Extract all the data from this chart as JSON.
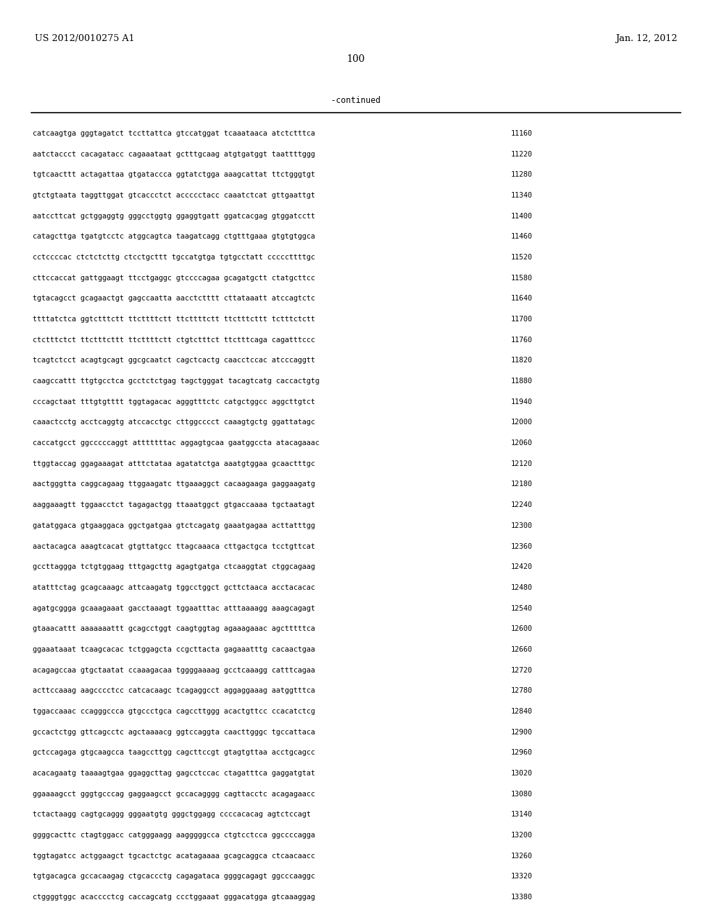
{
  "header_left": "US 2012/0010275 A1",
  "header_right": "Jan. 12, 2012",
  "page_number": "100",
  "continued_label": "-continued",
  "background_color": "#ffffff",
  "text_color": "#000000",
  "font_size": 7.5,
  "header_font_size": 9.5,
  "page_num_font_size": 10,
  "sequences": [
    [
      "catcaagtga gggtagatct tccttattca gtccatggat tcaaataaca atctctttca",
      "11160"
    ],
    [
      "aatctaccct cacagatacc cagaaataat gctttgcaag atgtgatggt taattttggg",
      "11220"
    ],
    [
      "tgtcaacttt actagattaa gtgataccca ggtatctgga aaagcattat ttctgggtgt",
      "11280"
    ],
    [
      "gtctgtaata taggttggat gtcaccctct accccctacc caaatctcat gttgaattgt",
      "11340"
    ],
    [
      "aatccttcat gctggaggtg gggcctggtg ggaggtgatt ggatcacgag gtggatcctt",
      "11400"
    ],
    [
      "catagcttga tgatgtcctc atggcagtca taagatcagg ctgtttgaaa gtgtgtggca",
      "11460"
    ],
    [
      "cctccccac ctctctcttg ctcctgcttt tgccatgtga tgtgcctatt cccccttttgc",
      "11520"
    ],
    [
      "cttccaccat gattggaagt ttcctgaggc gtccccagaa gcagatgctt ctatgcttcc",
      "11580"
    ],
    [
      "tgtacagcct gcagaactgt gagccaatta aacctctttt cttataaatt atccagtctc",
      "11640"
    ],
    [
      "ttttatctca ggtctttctt ttcttttctt ttcttttctt ttctttcttt tctttctctt",
      "11700"
    ],
    [
      "ctctttctct ttctttcttt ttcttttctt ctgtctttct ttctttcaga cagatttccc",
      "11760"
    ],
    [
      "tcagtctcct acagtgcagt ggcgcaatct cagctcactg caacctccac atcccaggtt",
      "11820"
    ],
    [
      "caagccattt ttgtgcctca gcctctctgag tagctgggat tacagtcatg caccactgtg",
      "11880"
    ],
    [
      "cccagctaat tttgtgtttt tggtagacac agggtttctc catgctggcc aggcttgtct",
      "11940"
    ],
    [
      "caaactcctg acctcaggtg atccacctgc cttggcccct caaagtgctg ggattatagc",
      "12000"
    ],
    [
      "caccatgcct ggcccccaggt atttttttac aggagtgcaa gaatggccta atacagaaac",
      "12060"
    ],
    [
      "ttggtaccag ggagaaagat atttctataa agatatctga aaatgtggaa gcaactttgc",
      "12120"
    ],
    [
      "aactgggtta caggcagaag ttggaagatc ttgaaaggct cacaagaaga gaggaagatg",
      "12180"
    ],
    [
      "aaggaaagtt tggaacctct tagagactgg ttaaatggct gtgaccaaaa tgctaatagt",
      "12240"
    ],
    [
      "gatatggaca gtgaaggaca ggctgatgaa gtctcagatg gaaatgagaa acttatttgg",
      "12300"
    ],
    [
      "aactacagca aaagtcacat gtgttatgcc ttagcaaaca cttgactgca tcctgttcat",
      "12360"
    ],
    [
      "gccttaggga tctgtggaag tttgagcttg agagtgatga ctcaaggtat ctggcagaag",
      "12420"
    ],
    [
      "atatttctag gcagcaaagc attcaagatg tggcctggct gcttctaaca acctacacac",
      "12480"
    ],
    [
      "agatgcggga gcaaagaaat gacctaaagt tggaatttac atttaaaagg aaagcagagt",
      "12540"
    ],
    [
      "gtaaacattt aaaaaaattt gcagcctggt caagtggtag agaaagaaac agctttttca",
      "12600"
    ],
    [
      "ggaaataaat tcaagcacac tctggagcta ccgcttacta gagaaatttg cacaactgaa",
      "12660"
    ],
    [
      "acagagccaa gtgctaatat ccaaagacaa tggggaaaag gcctcaaagg catttcagaa",
      "12720"
    ],
    [
      "acttccaaag aagcccctcc catcacaagc tcagaggcct aggaggaaag aatggtttca",
      "12780"
    ],
    [
      "tggaccaaac ccagggccca gtgccctgca cagccttggg acactgttcc ccacatctcg",
      "12840"
    ],
    [
      "gccactctgg gttcagcctc agctaaaacg ggtccaggta caacttgggc tgccattaca",
      "12900"
    ],
    [
      "gctccagaga gtgcaagcca taagccttgg cagcttccgt gtagtgttaa acctgcagcc",
      "12960"
    ],
    [
      "acacagaatg taaaagtgaa ggaggcttag gagcctccac ctagatttca gaggatgtat",
      "13020"
    ],
    [
      "ggaaaagcct gggtgcccag gaggaagcct gccacagggg cagttacctc acagagaacc",
      "13080"
    ],
    [
      "tctactaagg cagtgcaggg gggaatgtg gggctggagg ccccacacag agtctccagt",
      "13140"
    ],
    [
      "ggggcacttc ctagtggacc catgggaagg aagggggcca ctgtcctcca ggccccagga",
      "13200"
    ],
    [
      "tggtagatcc actggaagct tgcactctgc acatagaaaa gcagcaggca ctcaacaacc",
      "13260"
    ],
    [
      "tgtgacagca gccacaagag ctgcaccctg cagagataca ggggcagagt ggcccaaggc",
      "13320"
    ],
    [
      "ctggggtggc acacccctcg caccagcatg ccctggaaat gggacatgga gtcaaaggag",
      "13380"
    ]
  ]
}
